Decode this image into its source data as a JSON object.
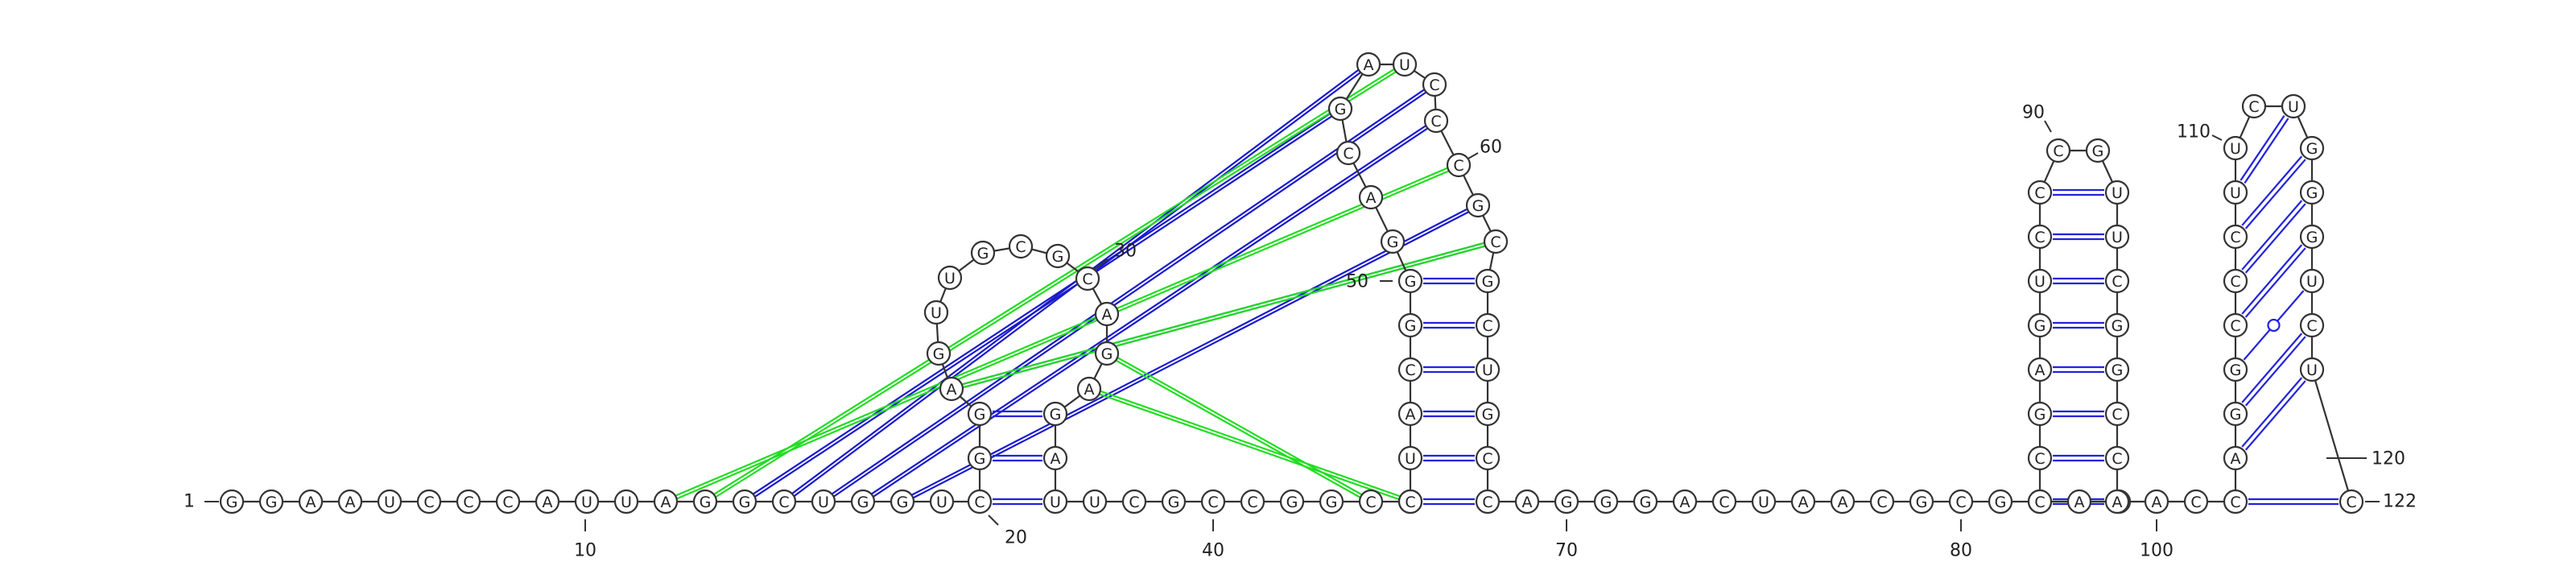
{
  "sequence": "GGAAUCCCAUUAGGCUGGUCGGAGUUGCGCAGAGAUUCGCCGGCCCUACGGGACGAUCCCGCGCUGCCAGGGACUAACGCGCAUCCGAGUCCCGUUCGGCCAACCAGGCCCUUCUGGGUCUC",
  "structure": "...................(((.((((.(((....)))..............................)))).))).........(((((((....)))))))...((((((((....)))))))).",
  "labels": [
    "1",
    "10",
    "20",
    "30",
    "40",
    "50",
    "60",
    "70",
    "80",
    "90",
    "100",
    "110",
    "120",
    "122"
  ],
  "colors": {
    "backbone": "#333333",
    "canonical_pair": "#2222dd",
    "gu_pair": "#2222dd",
    "pseudoknot_blue": "#1a1acc",
    "pseudoknot_green": "#22dd22"
  }
}
